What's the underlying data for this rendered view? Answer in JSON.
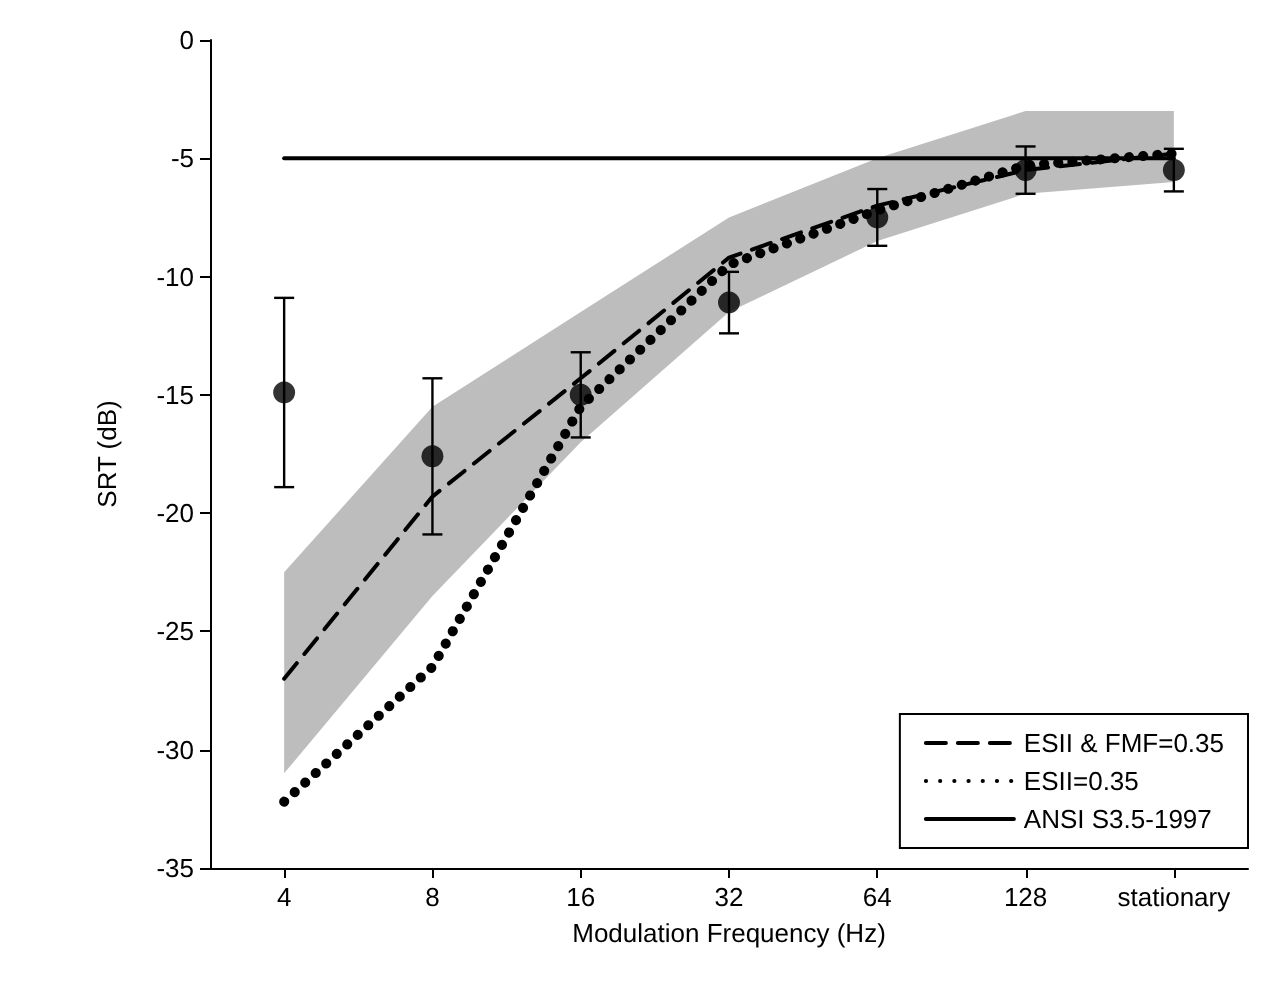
{
  "chart_data": {
    "type": "line",
    "xlabel": "Modulation Frequency (Hz)",
    "ylabel": "SRT (dB)",
    "categories": [
      "4",
      "8",
      "16",
      "32",
      "64",
      "128",
      "stationary"
    ],
    "ylim": [
      -35,
      0
    ],
    "yticks": [
      -35,
      -30,
      -25,
      -20,
      -15,
      -10,
      -5,
      0
    ],
    "grid": false,
    "legend": "bottom right",
    "series": [
      {
        "name": "ESII & FMF=0.35",
        "color": "#000000",
        "line_style": "dashed",
        "marker": "none",
        "values": [
          -27,
          -19.3,
          -14.3,
          -9.2,
          -7,
          -5.5,
          -4.8
        ],
        "lower": [
          -31,
          -23.5,
          -17,
          -11.5,
          -8.5,
          -6.5,
          -6
        ],
        "upper": [
          -22.5,
          -15.5,
          -11.5,
          -7.5,
          -5,
          -3,
          -3
        ]
      },
      {
        "name": "ESII=0.35",
        "color": "#000000",
        "line_style": "dotted",
        "marker": "none",
        "values": [
          -32.2,
          -26.5,
          -15.5,
          -9.5,
          -7.2,
          -5.3,
          -4.8
        ]
      },
      {
        "name": "ANSI S3.5-1997",
        "color": "#000000",
        "line_style": "solid",
        "marker": "none",
        "values": [
          -5,
          -5,
          -5,
          -5,
          -5,
          -5,
          -5
        ]
      },
      {
        "type": "scatter",
        "color": "#000000",
        "marker": "circle",
        "values": [
          -14.9,
          -17.6,
          -15,
          -11.1,
          -7.5,
          -5.5,
          -5.5
        ],
        "errors": [
          4,
          3.3,
          1.8,
          1.3,
          1.2,
          1,
          0.9
        ]
      }
    ]
  }
}
